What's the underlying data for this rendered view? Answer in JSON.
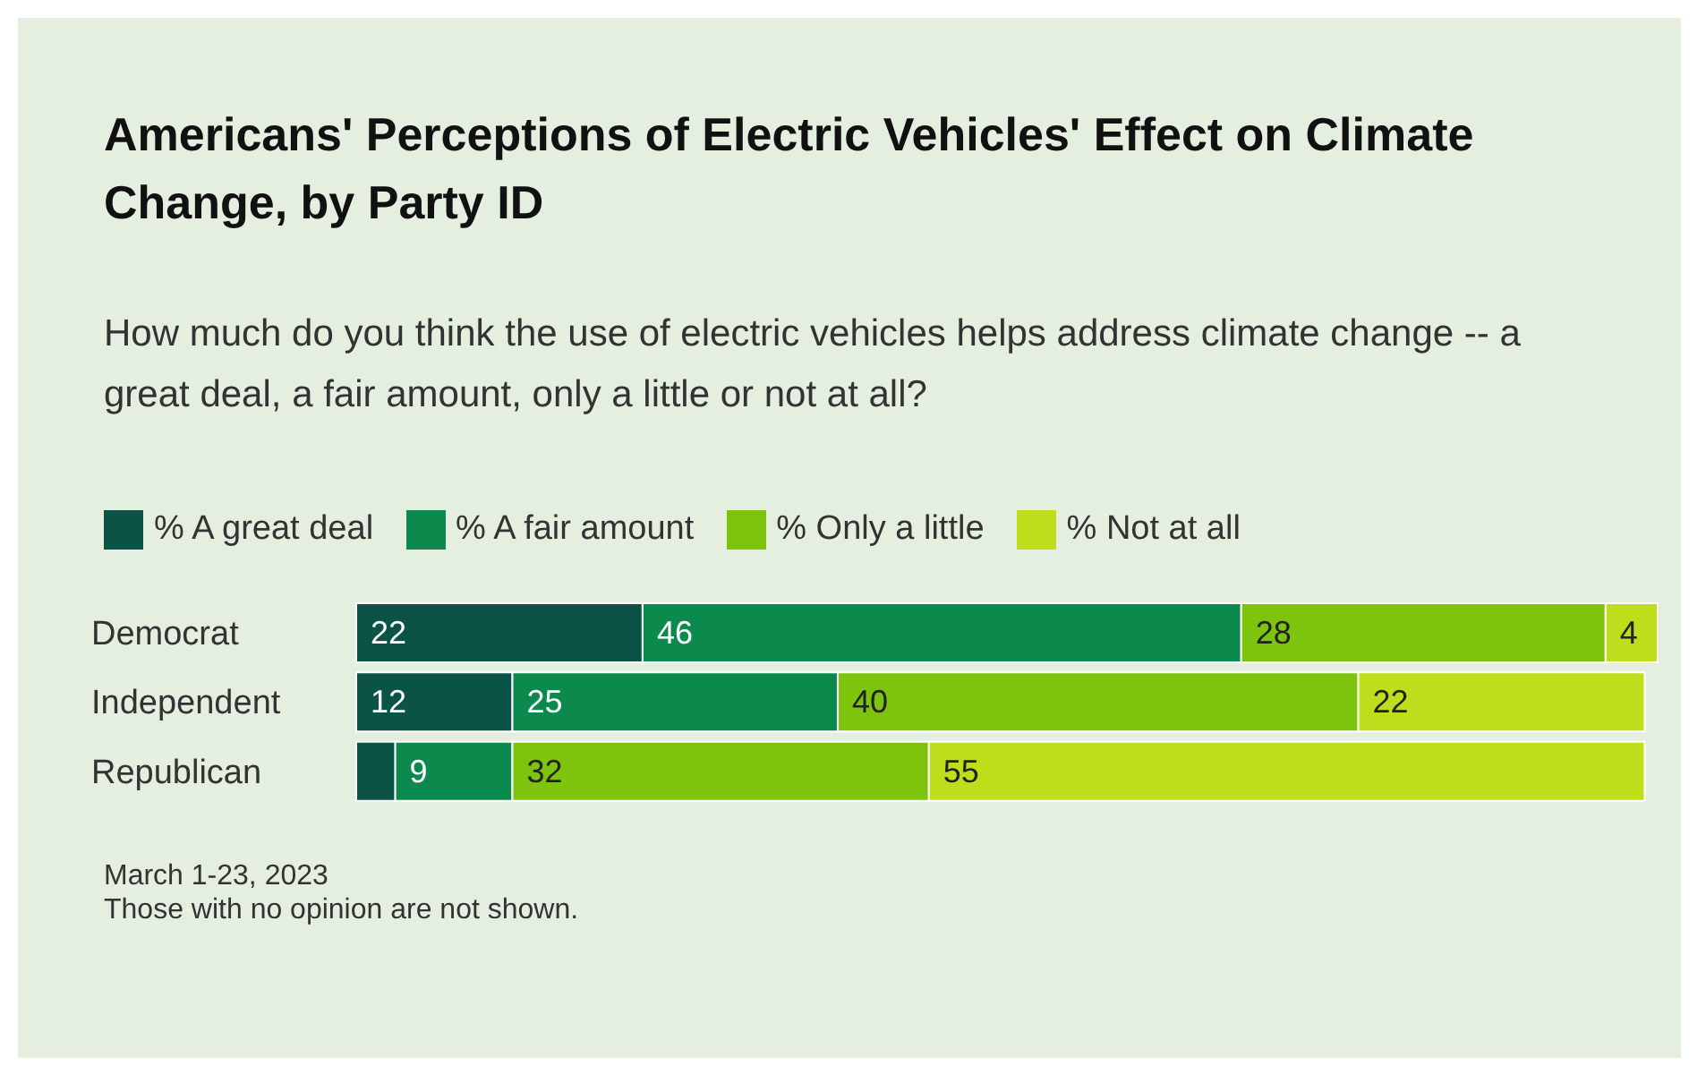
{
  "chart_data": {
    "type": "bar",
    "orientation": "horizontal",
    "stacked": true,
    "title": "Americans' Perceptions of Electric Vehicles' Effect on Climate Change, by Party ID",
    "subtitle": "How much do you think the use of electric vehicles helps address climate change -- a great deal, a fair amount, only a little or not at all?",
    "categories": [
      "Democrat",
      "Independent",
      "Republican"
    ],
    "series": [
      {
        "name": "% A great deal",
        "color": "#0b5346",
        "values": [
          22,
          12,
          3
        ],
        "value_labels": [
          "22",
          "12",
          null
        ]
      },
      {
        "name": "% A fair amount",
        "color": "#0c8a4e",
        "values": [
          46,
          25,
          9
        ],
        "value_labels": [
          "46",
          "25",
          "9"
        ]
      },
      {
        "name": "% Only a little",
        "color": "#7ec40c",
        "values": [
          28,
          40,
          32
        ],
        "value_labels": [
          "28",
          "40",
          "32"
        ]
      },
      {
        "name": "% Not at all",
        "color": "#bede1c",
        "values": [
          4,
          22,
          55
        ],
        "value_labels": [
          "4",
          "22",
          "55"
        ]
      }
    ],
    "legend": "top left",
    "grid": false,
    "tick_labels": "y",
    "annotations": [
      "March 1-23, 2023",
      "Those with no opinion are not shown."
    ]
  }
}
